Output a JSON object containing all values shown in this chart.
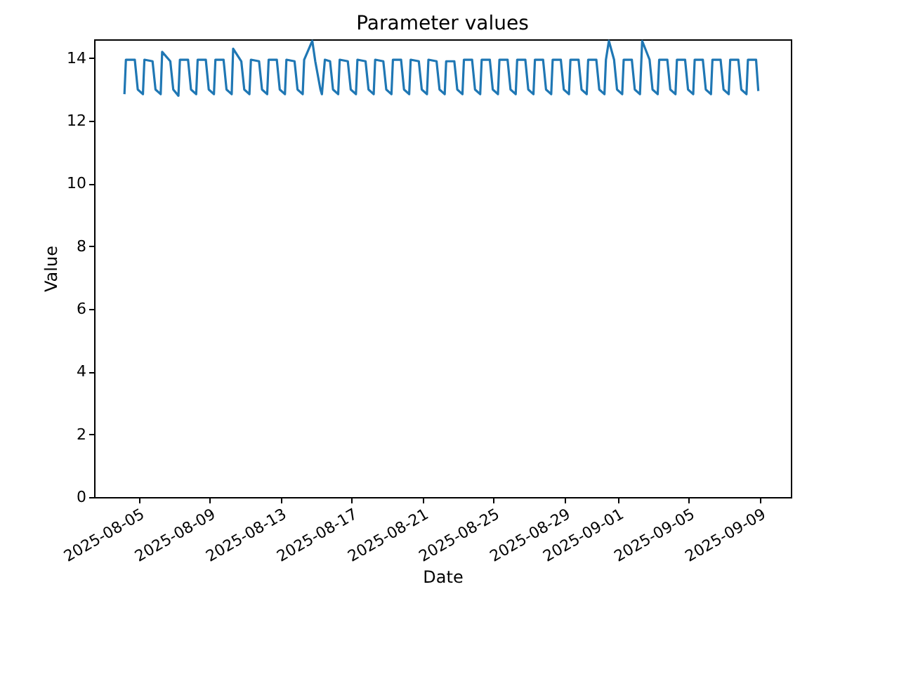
{
  "chart_data": {
    "type": "line",
    "title": "Parameter values",
    "xlabel": "Date",
    "ylabel": "Value",
    "x": [
      "2025-08-04T05:00",
      "2025-08-04T07:00",
      "2025-08-04T19:00",
      "2025-08-04T23:00",
      "2025-08-05T06:00",
      "2025-08-05T08:00",
      "2025-08-05T19:00",
      "2025-08-05T23:00",
      "2025-08-06T06:00",
      "2025-08-06T08:00",
      "2025-08-06T19:00",
      "2025-08-06T23:00",
      "2025-08-07T06:00",
      "2025-08-07T08:00",
      "2025-08-07T19:00",
      "2025-08-07T23:00",
      "2025-08-08T06:00",
      "2025-08-08T08:00",
      "2025-08-08T19:00",
      "2025-08-08T23:00",
      "2025-08-09T06:00",
      "2025-08-09T08:00",
      "2025-08-09T19:00",
      "2025-08-09T23:00",
      "2025-08-10T06:00",
      "2025-08-10T08:00",
      "2025-08-10T19:00",
      "2025-08-10T23:00",
      "2025-08-11T06:00",
      "2025-08-11T08:00",
      "2025-08-11T19:00",
      "2025-08-11T23:00",
      "2025-08-12T06:00",
      "2025-08-12T08:00",
      "2025-08-12T19:00",
      "2025-08-12T23:00",
      "2025-08-13T06:00",
      "2025-08-13T08:00",
      "2025-08-13T19:00",
      "2025-08-13T23:00",
      "2025-08-14T06:00",
      "2025-08-14T08:00",
      "2025-08-14T19:00",
      "2025-08-14T23:00",
      "2025-08-15T06:00",
      "2025-08-15T08:00",
      "2025-08-15T12:00",
      "2025-08-15T19:00",
      "2025-08-15T23:00",
      "2025-08-16T06:00",
      "2025-08-16T08:00",
      "2025-08-16T19:00",
      "2025-08-16T23:00",
      "2025-08-17T06:00",
      "2025-08-17T08:00",
      "2025-08-17T19:00",
      "2025-08-17T23:00",
      "2025-08-18T06:00",
      "2025-08-18T08:00",
      "2025-08-18T19:00",
      "2025-08-18T23:00",
      "2025-08-19T06:00",
      "2025-08-19T08:00",
      "2025-08-19T19:00",
      "2025-08-19T23:00",
      "2025-08-20T06:00",
      "2025-08-20T08:00",
      "2025-08-20T19:00",
      "2025-08-20T23:00",
      "2025-08-21T06:00",
      "2025-08-21T08:00",
      "2025-08-21T19:00",
      "2025-08-21T23:00",
      "2025-08-22T06:00",
      "2025-08-22T08:00",
      "2025-08-22T19:00",
      "2025-08-22T23:00",
      "2025-08-23T06:00",
      "2025-08-23T08:00",
      "2025-08-23T19:00",
      "2025-08-23T23:00",
      "2025-08-24T06:00",
      "2025-08-24T08:00",
      "2025-08-24T19:00",
      "2025-08-24T23:00",
      "2025-08-25T06:00",
      "2025-08-25T08:00",
      "2025-08-25T19:00",
      "2025-08-25T23:00",
      "2025-08-26T06:00",
      "2025-08-26T08:00",
      "2025-08-26T19:00",
      "2025-08-26T23:00",
      "2025-08-27T06:00",
      "2025-08-27T08:00",
      "2025-08-27T19:00",
      "2025-08-27T23:00",
      "2025-08-28T06:00",
      "2025-08-28T08:00",
      "2025-08-28T19:00",
      "2025-08-28T23:00",
      "2025-08-29T06:00",
      "2025-08-29T08:00",
      "2025-08-29T19:00",
      "2025-08-29T23:00",
      "2025-08-30T06:00",
      "2025-08-30T08:00",
      "2025-08-30T19:00",
      "2025-08-30T23:00",
      "2025-08-31T06:00",
      "2025-08-31T08:00",
      "2025-08-31T12:00",
      "2025-08-31T19:00",
      "2025-08-31T23:00",
      "2025-09-01T06:00",
      "2025-09-01T08:00",
      "2025-09-01T19:00",
      "2025-09-01T23:00",
      "2025-09-02T06:00",
      "2025-09-02T09:00",
      "2025-09-02T19:00",
      "2025-09-02T23:00",
      "2025-09-03T06:00",
      "2025-09-03T08:00",
      "2025-09-03T19:00",
      "2025-09-03T23:00",
      "2025-09-04T06:00",
      "2025-09-04T08:00",
      "2025-09-04T19:00",
      "2025-09-04T23:00",
      "2025-09-05T06:00",
      "2025-09-05T08:00",
      "2025-09-05T19:00",
      "2025-09-05T23:00",
      "2025-09-06T06:00",
      "2025-09-06T08:00",
      "2025-09-06T19:00",
      "2025-09-06T23:00",
      "2025-09-07T06:00",
      "2025-09-07T08:00",
      "2025-09-07T19:00",
      "2025-09-07T23:00",
      "2025-09-08T06:00",
      "2025-09-08T08:00",
      "2025-09-08T19:00",
      "2025-09-08T22:00"
    ],
    "series": [
      {
        "color": "#1f77b4",
        "values": [
          12.85,
          13.95,
          13.95,
          13.0,
          12.85,
          13.95,
          13.9,
          13.0,
          12.85,
          14.2,
          13.9,
          13.0,
          12.8,
          13.95,
          13.95,
          13.0,
          12.85,
          13.95,
          13.95,
          13.0,
          12.85,
          13.95,
          13.95,
          13.0,
          12.85,
          14.3,
          13.9,
          13.0,
          12.85,
          13.95,
          13.9,
          13.0,
          12.85,
          13.95,
          13.95,
          13.0,
          12.85,
          13.95,
          13.9,
          13.0,
          12.85,
          13.95,
          14.55,
          13.9,
          13.0,
          12.85,
          13.95,
          13.9,
          13.0,
          12.85,
          13.95,
          13.9,
          13.0,
          12.85,
          13.95,
          13.9,
          13.0,
          12.85,
          13.95,
          13.9,
          13.0,
          12.85,
          13.95,
          13.95,
          13.0,
          12.85,
          13.95,
          13.9,
          13.0,
          12.85,
          13.95,
          13.9,
          13.0,
          12.85,
          13.9,
          13.9,
          13.0,
          12.85,
          13.95,
          13.95,
          13.0,
          12.85,
          13.95,
          13.95,
          13.0,
          12.85,
          13.95,
          13.95,
          13.0,
          12.85,
          13.95,
          13.95,
          13.0,
          12.85,
          13.95,
          13.95,
          13.0,
          12.85,
          13.95,
          13.95,
          13.0,
          12.85,
          13.95,
          13.95,
          13.0,
          12.85,
          13.95,
          13.95,
          13.0,
          12.85,
          13.95,
          14.55,
          13.95,
          13.0,
          12.85,
          13.95,
          13.95,
          13.0,
          12.85,
          14.55,
          13.95,
          13.0,
          12.85,
          13.95,
          13.95,
          13.0,
          12.85,
          13.95,
          13.95,
          13.0,
          12.85,
          13.95,
          13.95,
          13.0,
          12.85,
          13.95,
          13.95,
          13.0,
          12.85,
          13.95,
          13.95,
          13.0,
          12.85,
          13.95,
          13.95,
          12.95
        ]
      }
    ],
    "xlim": [
      "2025-08-02T12:00",
      "2025-09-10T18:00"
    ],
    "xticks": [
      "2025-08-05",
      "2025-08-09",
      "2025-08-13",
      "2025-08-17",
      "2025-08-21",
      "2025-08-25",
      "2025-08-29",
      "2025-09-01",
      "2025-09-05",
      "2025-09-09"
    ],
    "ylim": [
      0,
      14.6
    ],
    "yticks": [
      0,
      2,
      4,
      6,
      8,
      10,
      12,
      14
    ]
  }
}
